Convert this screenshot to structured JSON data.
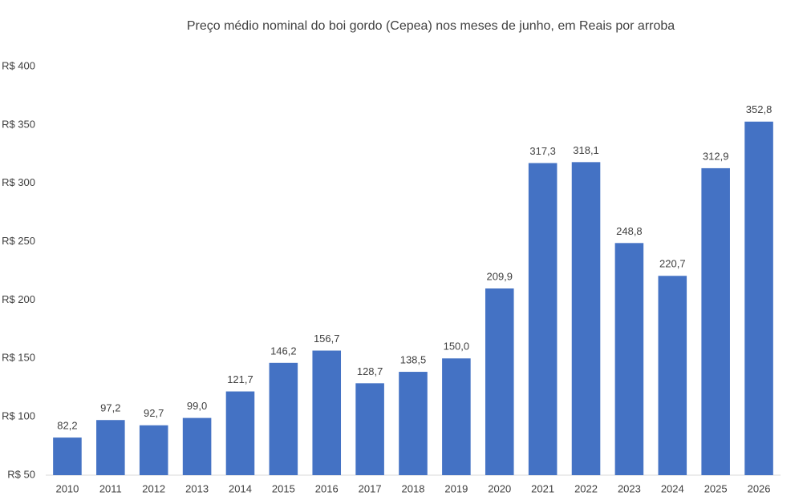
{
  "chart_data": {
    "type": "bar",
    "title": "Preço médio nominal do boi gordo (Cepea) nos meses de junho, em Reais por arroba",
    "categories": [
      "2010",
      "2011",
      "2012",
      "2013",
      "2014",
      "2015",
      "2016",
      "2017",
      "2018",
      "2019",
      "2020",
      "2021",
      "2022",
      "2023",
      "2024",
      "2025",
      "2026"
    ],
    "values": [
      82.2,
      97.2,
      92.7,
      99.0,
      121.7,
      146.2,
      156.7,
      128.7,
      138.5,
      150.0,
      209.9,
      317.3,
      318.1,
      248.8,
      220.7,
      312.9,
      352.8
    ],
    "value_labels": [
      "82,2",
      "97,2",
      "92,7",
      "99,0",
      "121,7",
      "146,2",
      "156,7",
      "128,7",
      "138,5",
      "150,0",
      "209,9",
      "317,3",
      "318,1",
      "248,8",
      "220,7",
      "312,9",
      "352,8"
    ],
    "color": "#4472c4",
    "ylim": [
      50,
      400
    ],
    "yticks": [
      {
        "value": 50,
        "label": "R$ 50"
      },
      {
        "value": 100,
        "label": "R$ 100"
      },
      {
        "value": 150,
        "label": "R$ 150"
      },
      {
        "value": 200,
        "label": "R$ 200"
      },
      {
        "value": 250,
        "label": "R$ 250"
      },
      {
        "value": 300,
        "label": "R$ 300"
      },
      {
        "value": 350,
        "label": "R$ 350"
      },
      {
        "value": 400,
        "label": "R$ 400"
      }
    ],
    "grid": false
  }
}
